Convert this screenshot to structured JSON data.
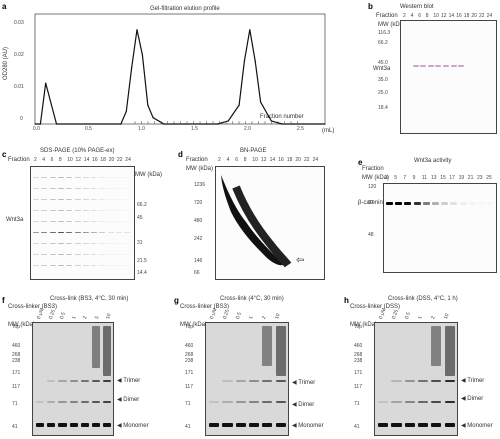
{
  "panel_letters": {
    "a": "a",
    "b": "b",
    "c": "c",
    "d": "d",
    "e": "e",
    "f": "f",
    "g": "g",
    "h": "h"
  },
  "panel_a": {
    "title": "Gel-filtration elution profile",
    "ylabel": "OD280 (AU)",
    "xlabel": "(mL)",
    "fraction_label": "Fraction number",
    "y_ticks": [
      "0.03",
      "0.02",
      "0.01",
      "0"
    ],
    "x_ticks": [
      "0.0",
      "0.5",
      "1.0",
      "1.5",
      "2.0",
      "2.5"
    ]
  },
  "chart_data": {
    "type": "line",
    "title": "Gel-filtration elution profile",
    "xlabel": "(mL)",
    "ylabel": "OD280 (AU)",
    "xlim": [
      0,
      2.7
    ],
    "ylim": [
      0,
      0.035
    ],
    "x": [
      0.0,
      0.05,
      0.1,
      0.2,
      0.3,
      0.4,
      0.5,
      0.6,
      0.7,
      0.8,
      0.85,
      0.9,
      0.95,
      1.0,
      1.05,
      1.1,
      1.2,
      1.3,
      1.4,
      1.5,
      1.6,
      1.7,
      1.8,
      1.9,
      1.95,
      2.0,
      2.05,
      2.1,
      2.2,
      2.3,
      2.4,
      2.5,
      2.6,
      2.7
    ],
    "series": [
      {
        "values": [
          0.0,
          0.0,
          0.013,
          0.0,
          0.0,
          0.0,
          0.0,
          0.0,
          0.0,
          0.0,
          0.004,
          0.018,
          0.03,
          0.022,
          0.006,
          0.002,
          0.0,
          0.0,
          0.0,
          0.0,
          0.0,
          0.0,
          0.001,
          0.006,
          0.02,
          0.03,
          0.02,
          0.007,
          0.001,
          0.0,
          0.0,
          0.0,
          0.0,
          0.0
        ]
      }
    ]
  },
  "panel_b": {
    "title": "Western blot",
    "frac_label": "Fraction",
    "lanes": [
      "2",
      "4",
      "6",
      "8",
      "10",
      "12",
      "14",
      "16",
      "18",
      "20",
      "22",
      "24"
    ],
    "mw_unit": "MW (kDa)",
    "mw": [
      "116.3",
      "66.2",
      "45.0",
      "35.0",
      "25.0",
      "18.4"
    ],
    "band_label": "Wnt3a"
  },
  "panel_c": {
    "title": "SDS-PAGE (10% PAGE-ex)",
    "frac_label": "Fraction",
    "lanes": [
      "2",
      "4",
      "6",
      "8",
      "10",
      "12",
      "14",
      "16",
      "18",
      "20",
      "22",
      "24"
    ],
    "mw_unit": "MW (kDa)",
    "mw": [
      "66.2",
      "45",
      "31",
      "21.5",
      "14.4"
    ],
    "band_label": "Wnt3a"
  },
  "panel_d": {
    "title": "BN-PAGE",
    "frac_label": "Fraction",
    "lanes": [
      "2",
      "4",
      "6",
      "8",
      "10",
      "12",
      "14",
      "16",
      "18",
      "20",
      "22",
      "24"
    ],
    "mw_unit": "MW (kDa)",
    "mw": [
      "1236",
      "720",
      "480",
      "242",
      "146",
      "66"
    ],
    "arrow": "⇦"
  },
  "panel_e": {
    "title": "Wnt3a activity",
    "frac_label": "Fraction",
    "lanes": [
      "3",
      "5",
      "7",
      "9",
      "11",
      "13",
      "15",
      "17",
      "19",
      "21",
      "23",
      "25"
    ],
    "mw_unit": "MW (kDa)",
    "mw": [
      "120",
      "97",
      "48"
    ],
    "band_label": "β-catenin"
  },
  "panel_f": {
    "title": "Cross-linker (BS3)",
    "header": "Cross-link (BS3, 4°C, 30 min)",
    "conc": [
      "0 μM",
      "0.25",
      "0.5",
      "1",
      "2",
      "5",
      "10"
    ],
    "mw_unit": "MW (kDa)",
    "mw": [
      "Top",
      "460",
      "268",
      "238",
      "171",
      "117",
      "71",
      "41"
    ],
    "labels": [
      "Trimer",
      "Dimer",
      "Monomer"
    ]
  },
  "panel_g": {
    "title": "Cross-linker (BS3)",
    "header": "Cross-link (4°C, 30 min)",
    "conc": [
      "0 μM",
      "0.25",
      "0.5",
      "1",
      "2",
      "10"
    ],
    "mw_unit": "MW (kDa)",
    "mw": [
      "Top",
      "460",
      "268",
      "238",
      "171",
      "117",
      "71",
      "41"
    ],
    "labels": [
      "Trimer",
      "Dimer",
      "Monomer"
    ]
  },
  "panel_h": {
    "title": "Cross-linker (DSS)",
    "header": "Cross-link (DSS, 4°C, 1 h)",
    "conc": [
      "0 μM",
      "0.25",
      "0.5",
      "1",
      "2",
      "10"
    ],
    "mw_unit": "MW (kDa)",
    "mw": [
      "Top",
      "460",
      "268",
      "238",
      "171",
      "117",
      "71",
      "41"
    ],
    "labels": [
      "Trimer",
      "Dimer",
      "Monomer"
    ]
  }
}
